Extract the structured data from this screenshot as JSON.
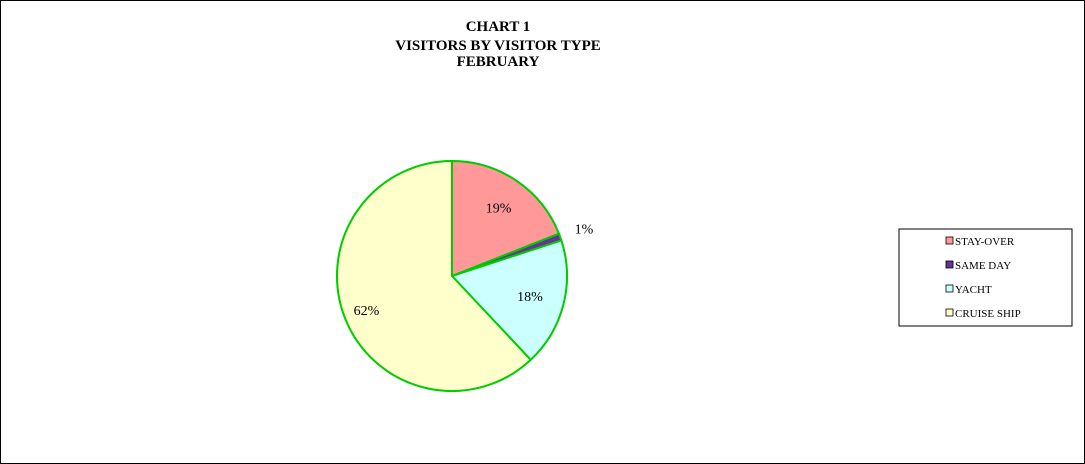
{
  "chart_data": {
    "type": "pie",
    "title": [
      "CHART 1",
      "VISITORS BY VISITOR TYPE",
      "FEBRUARY"
    ],
    "categories": [
      "STAY-OVER",
      "SAME DAY",
      "YACHT",
      "CRUISE SHIP"
    ],
    "values": [
      19,
      1,
      18,
      62
    ],
    "value_labels": [
      "19%",
      "1%",
      "18%",
      "62%"
    ],
    "colors": [
      "#ff9999",
      "#663399",
      "#ccffff",
      "#ffffcc"
    ],
    "slice_border_color": "#00cc00",
    "legend_position": "right"
  }
}
